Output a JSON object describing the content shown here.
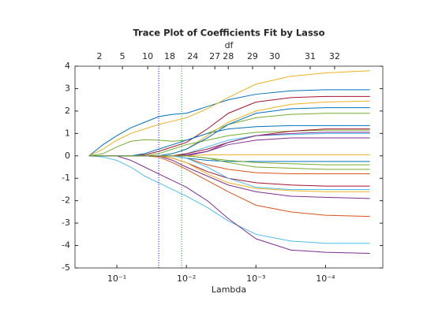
{
  "chart_data": {
    "type": "line",
    "title": "Trace Plot of Coefficients Fit by Lasso",
    "x_label": "Lambda",
    "top_label": "df",
    "x_scale": "log",
    "xlim": [
      0.4,
      1.5e-05
    ],
    "ylim": [
      -5,
      4
    ],
    "xticks": [
      {
        "value": 0.1,
        "label": "10⁻¹"
      },
      {
        "value": 0.01,
        "label": "10⁻²"
      },
      {
        "value": 0.001,
        "label": "10⁻³"
      },
      {
        "value": 0.0001,
        "label": "10⁻⁴"
      }
    ],
    "yticks": [
      -5,
      -4,
      -3,
      -2,
      -1,
      0,
      1,
      2,
      3,
      4
    ],
    "top_ticks": [
      {
        "value": 0.178,
        "label": "2"
      },
      {
        "value": 0.083,
        "label": "5"
      },
      {
        "value": 0.036,
        "label": "10"
      },
      {
        "value": 0.0174,
        "label": "18"
      },
      {
        "value": 0.0081,
        "label": "24"
      },
      {
        "value": 0.0039,
        "label": "27"
      },
      {
        "value": 0.0025,
        "label": "28"
      },
      {
        "value": 0.00112,
        "label": "29"
      },
      {
        "value": 0.00054,
        "label": "30"
      },
      {
        "value": 0.000166,
        "label": "31"
      },
      {
        "value": 7.4e-05,
        "label": "32"
      }
    ],
    "vlines": [
      {
        "x": 0.025,
        "color": "#0000ff"
      },
      {
        "x": 0.0117,
        "color": "#00aa00"
      }
    ],
    "grid": false,
    "x": [
      0.251,
      0.158,
      0.1,
      0.063,
      0.0398,
      0.0251,
      0.0158,
      0.01,
      0.005,
      0.0025,
      0.001,
      0.000316,
      0.0001,
      2.3e-05
    ],
    "series": [
      {
        "color": "#0072bd",
        "values": [
          0,
          0.5,
          0.9,
          1.25,
          1.5,
          1.75,
          1.85,
          1.9,
          2.2,
          2.5,
          2.75,
          2.9,
          2.95,
          2.95
        ]
      },
      {
        "color": "#edb120",
        "values": [
          0,
          0.3,
          0.7,
          1.0,
          1.2,
          1.4,
          1.55,
          1.7,
          2.1,
          2.6,
          3.2,
          3.55,
          3.7,
          3.8
        ]
      },
      {
        "color": "#4dbeee",
        "values": [
          0,
          -0.05,
          -0.2,
          -0.5,
          -0.9,
          -1.2,
          -1.5,
          -1.8,
          -2.3,
          -2.9,
          -3.5,
          -3.8,
          -3.9,
          -3.9
        ]
      },
      {
        "color": "#7e2f8e",
        "values": [
          0,
          0,
          0,
          -0.2,
          -0.5,
          -0.8,
          -1.1,
          -1.4,
          -2.0,
          -2.8,
          -3.7,
          -4.2,
          -4.3,
          -4.35
        ]
      },
      {
        "color": "#77ac30",
        "values": [
          0,
          0.1,
          0.4,
          0.65,
          0.72,
          0.7,
          0.65,
          0.7,
          1.0,
          1.4,
          1.7,
          1.85,
          1.9,
          1.9
        ]
      },
      {
        "color": "#a2142f",
        "values": [
          0,
          0,
          0,
          0,
          0.05,
          0.2,
          0.4,
          0.6,
          1.2,
          1.9,
          2.4,
          2.6,
          2.65,
          2.65
        ]
      },
      {
        "color": "#d95319",
        "values": [
          0,
          0,
          0,
          0,
          0,
          -0.05,
          -0.3,
          -0.6,
          -1.1,
          -1.6,
          -2.2,
          -2.5,
          -2.65,
          -2.7
        ]
      },
      {
        "color": "#7e2f8e",
        "values": [
          0,
          0,
          0,
          0,
          0,
          0,
          -0.2,
          -0.5,
          -0.9,
          -1.3,
          -1.6,
          -1.8,
          -1.85,
          -1.9
        ]
      },
      {
        "color": "#0072bd",
        "values": [
          0,
          0,
          0,
          0,
          0.1,
          0.3,
          0.5,
          0.7,
          1.0,
          1.2,
          1.3,
          1.35,
          1.35,
          1.35
        ]
      },
      {
        "color": "#edb120",
        "values": [
          0,
          0,
          0,
          0,
          0,
          0,
          0.1,
          0.3,
          0.9,
          1.5,
          2.0,
          2.3,
          2.4,
          2.45
        ]
      },
      {
        "color": "#77ac30",
        "values": [
          0,
          0,
          0,
          0,
          0,
          0.1,
          0.3,
          0.5,
          0.7,
          0.9,
          1.05,
          1.1,
          1.15,
          1.15
        ]
      },
      {
        "color": "#a2142f",
        "values": [
          0,
          0,
          0,
          0,
          0,
          0,
          -0.1,
          -0.3,
          -0.7,
          -1.0,
          -1.2,
          -1.3,
          -1.35,
          -1.35
        ]
      },
      {
        "color": "#4dbeee",
        "values": [
          0,
          0,
          0,
          0,
          0,
          0,
          0,
          0.1,
          0.4,
          0.7,
          0.9,
          0.95,
          1.0,
          1.0
        ]
      },
      {
        "color": "#edb120",
        "values": [
          0,
          0,
          0,
          0,
          0,
          0,
          -0.1,
          -0.3,
          -0.8,
          -1.2,
          -1.45,
          -1.55,
          -1.6,
          -1.6
        ]
      },
      {
        "color": "#0072bd",
        "values": [
          0,
          0,
          0,
          0,
          0,
          0,
          0,
          -0.1,
          -0.2,
          -0.25,
          -0.25,
          -0.25,
          -0.25,
          -0.25
        ]
      },
      {
        "color": "#d95319",
        "values": [
          0,
          0,
          0,
          0,
          0,
          0,
          0,
          -0.1,
          -0.4,
          -0.6,
          -0.75,
          -0.8,
          -0.8,
          -0.8
        ]
      },
      {
        "color": "#7e2f8e",
        "values": [
          0,
          0,
          0,
          0,
          0,
          0,
          0,
          0.05,
          0.2,
          0.5,
          0.7,
          0.8,
          0.8,
          0.8
        ]
      },
      {
        "color": "#77ac30",
        "values": [
          0,
          0,
          0,
          0,
          0,
          0,
          0,
          0,
          -0.1,
          -0.2,
          -0.3,
          -0.35,
          -0.4,
          -0.4
        ]
      },
      {
        "color": "#a2142f",
        "values": [
          0,
          0,
          0,
          0,
          0,
          0,
          0,
          0.1,
          0.3,
          0.6,
          0.9,
          1.1,
          1.2,
          1.2
        ]
      },
      {
        "color": "#edb120",
        "values": [
          0,
          0,
          0,
          0,
          0,
          0,
          0,
          0,
          0.05,
          0.05,
          0.05,
          0.05,
          0.05,
          0.05
        ]
      },
      {
        "color": "#0072bd",
        "values": [
          0,
          0,
          0,
          0,
          0,
          0,
          0.1,
          0.3,
          0.8,
          1.4,
          1.9,
          2.1,
          2.15,
          2.15
        ]
      },
      {
        "color": "#4dbeee",
        "values": [
          0,
          0,
          0,
          0,
          0,
          0,
          0,
          -0.1,
          -0.5,
          -1.0,
          -1.4,
          -1.5,
          -1.5,
          -1.5
        ]
      },
      {
        "color": "#7e2f8e",
        "values": [
          0,
          0,
          0,
          0,
          0,
          0,
          0,
          0,
          0.2,
          0.6,
          0.9,
          1.0,
          1.05,
          1.05
        ]
      },
      {
        "color": "#77ac30",
        "values": [
          0,
          0,
          0,
          0,
          0,
          0,
          0,
          0,
          -0.1,
          -0.3,
          -0.5,
          -0.55,
          -0.6,
          -0.6
        ]
      }
    ]
  }
}
